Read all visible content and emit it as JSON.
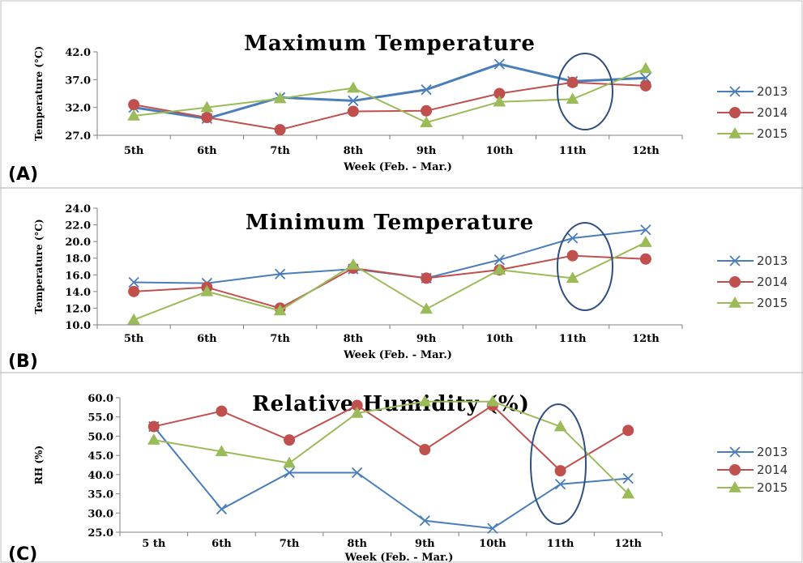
{
  "chart_data": [
    {
      "type": "line",
      "panel_label": "(A)",
      "title": "Maximum Temperature",
      "xlabel": "Week (Feb. - Mar.)",
      "ylabel": "Temperature (°C)",
      "categories": [
        "5th",
        "6th",
        "7th",
        "8th",
        "9th",
        "10th",
        "11th",
        "12th"
      ],
      "ylim": [
        27.0,
        42.0
      ],
      "yticks": [
        "27.0",
        "32.0",
        "37.0",
        "42.0"
      ],
      "grid": false,
      "legend_position": "right",
      "series": [
        {
          "name": "2013",
          "color": "#4a7ebb",
          "marker": "x",
          "values": [
            32.0,
            30.0,
            33.8,
            33.2,
            35.2,
            39.8,
            36.7,
            37.3
          ]
        },
        {
          "name": "2014",
          "color": "#c0504d",
          "marker": "circle",
          "values": [
            32.5,
            30.2,
            28.0,
            31.3,
            31.4,
            34.5,
            36.5,
            35.9
          ]
        },
        {
          "name": "2015",
          "color": "#9bbb59",
          "marker": "triangle",
          "values": [
            30.5,
            32.0,
            33.6,
            35.5,
            29.3,
            33.0,
            33.5,
            39.0
          ]
        }
      ],
      "annotation": "ellipse-around-11th"
    },
    {
      "type": "line",
      "panel_label": "(B)",
      "title": "Minimum Temperature",
      "xlabel": "Week (Feb. - Mar.)",
      "ylabel": "Temperature (°C)",
      "categories": [
        "5th",
        "6th",
        "7th",
        "8th",
        "9th",
        "10th",
        "11th",
        "12th"
      ],
      "ylim": [
        10.0,
        24.0
      ],
      "yticks": [
        "10.0",
        "12.0",
        "14.0",
        "16.0",
        "18.0",
        "20.0",
        "22.0",
        "24.0"
      ],
      "grid": false,
      "legend_position": "right",
      "series": [
        {
          "name": "2013",
          "color": "#4a7ebb",
          "marker": "x",
          "values": [
            15.1,
            15.0,
            16.1,
            16.7,
            15.6,
            17.8,
            20.4,
            21.4
          ]
        },
        {
          "name": "2014",
          "color": "#c0504d",
          "marker": "circle",
          "values": [
            14.0,
            14.5,
            12.0,
            16.8,
            15.6,
            16.6,
            18.3,
            17.9
          ]
        },
        {
          "name": "2015",
          "color": "#9bbb59",
          "marker": "triangle",
          "values": [
            10.6,
            14.0,
            11.7,
            17.2,
            11.9,
            16.6,
            15.6,
            19.9
          ]
        }
      ],
      "annotation": "ellipse-around-11th"
    },
    {
      "type": "line",
      "panel_label": "(C)",
      "title": "Relative Humidity (%)",
      "xlabel": "Week (Feb. - Mar.)",
      "ylabel": "RH (%)",
      "categories": [
        "5 th",
        "6th",
        "7th",
        "8th",
        "9th",
        "10th",
        "11th",
        "12th"
      ],
      "ylim": [
        25.0,
        60.0
      ],
      "yticks": [
        "25.0",
        "30.0",
        "35.0",
        "40.0",
        "45.0",
        "50.0",
        "55.0",
        "60.0"
      ],
      "grid": false,
      "legend_position": "right",
      "series": [
        {
          "name": "2013",
          "color": "#4a7ebb",
          "marker": "x",
          "values": [
            52.5,
            31.0,
            40.5,
            40.5,
            28.0,
            26.0,
            37.5,
            39.0
          ]
        },
        {
          "name": "2014",
          "color": "#c0504d",
          "marker": "circle",
          "values": [
            52.5,
            56.5,
            49.0,
            58.0,
            46.5,
            58.0,
            41.0,
            51.5
          ]
        },
        {
          "name": "2015",
          "color": "#9bbb59",
          "marker": "triangle",
          "values": [
            49.0,
            46.0,
            43.0,
            56.0,
            59.0,
            59.0,
            52.5,
            35.0
          ]
        }
      ],
      "annotation": "ellipse-around-11th"
    }
  ]
}
